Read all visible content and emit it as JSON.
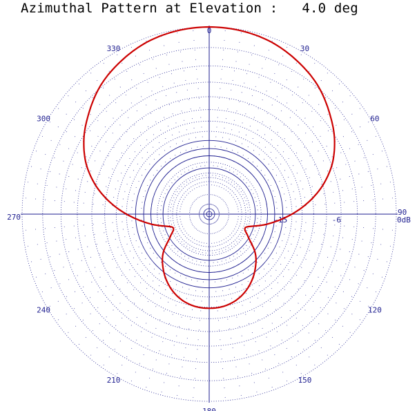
{
  "chart_data": {
    "type": "polar-line",
    "title": "Azimuthal Pattern at Elevation :   4.0 deg",
    "angle_ticks": [
      {
        "deg": 0,
        "label": "0"
      },
      {
        "deg": 30,
        "label": "30"
      },
      {
        "deg": 60,
        "label": "60"
      },
      {
        "deg": 90,
        "label": "90"
      },
      {
        "deg": 120,
        "label": "120"
      },
      {
        "deg": 150,
        "label": "150"
      },
      {
        "deg": 180,
        "label": "180"
      },
      {
        "deg": 210,
        "label": "210"
      },
      {
        "deg": 240,
        "label": "240"
      },
      {
        "deg": 270,
        "label": "270"
      },
      {
        "deg": 300,
        "label": "300"
      },
      {
        "deg": 330,
        "label": "330"
      }
    ],
    "radial_labels": [
      {
        "db": -15,
        "label": "-15"
      },
      {
        "db": -6,
        "label": "-6"
      },
      {
        "db": 0,
        "label": "0dB"
      }
    ],
    "radial_unit": "dB",
    "rings_db": [
      0,
      -2,
      -4,
      -6,
      -8,
      -10,
      -12,
      -14,
      -16,
      -18,
      -20,
      -22,
      -24,
      -26,
      -28,
      -30
    ],
    "r_range_db": [
      -30,
      0
    ],
    "angular_grid_step_deg": 5,
    "grid": true,
    "series": [
      {
        "color": "#cc0000",
        "points": [
          {
            "az": 0,
            "db": 0.0
          },
          {
            "az": 10,
            "db": -0.1
          },
          {
            "az": 20,
            "db": -0.4
          },
          {
            "az": 30,
            "db": -1.0
          },
          {
            "az": 40,
            "db": -1.8
          },
          {
            "az": 50,
            "db": -3.0
          },
          {
            "az": 60,
            "db": -4.4
          },
          {
            "az": 70,
            "db": -6.4
          },
          {
            "az": 80,
            "db": -9.5
          },
          {
            "az": 90,
            "db": -14.0
          },
          {
            "az": 100,
            "db": -20.0
          },
          {
            "az": 110,
            "db": -27.0
          },
          {
            "az": 120,
            "db": -24.5
          },
          {
            "az": 130,
            "db": -19.5
          },
          {
            "az": 140,
            "db": -16.5
          },
          {
            "az": 150,
            "db": -14.3
          },
          {
            "az": 160,
            "db": -12.8
          },
          {
            "az": 170,
            "db": -12.0
          },
          {
            "az": 180,
            "db": -11.8
          },
          {
            "az": 190,
            "db": -12.0
          },
          {
            "az": 200,
            "db": -12.8
          },
          {
            "az": 210,
            "db": -14.3
          },
          {
            "az": 220,
            "db": -16.5
          },
          {
            "az": 230,
            "db": -19.5
          },
          {
            "az": 240,
            "db": -24.5
          },
          {
            "az": 250,
            "db": -27.0
          },
          {
            "az": 260,
            "db": -20.0
          },
          {
            "az": 270,
            "db": -14.0
          },
          {
            "az": 280,
            "db": -9.5
          },
          {
            "az": 290,
            "db": -6.4
          },
          {
            "az": 300,
            "db": -4.4
          },
          {
            "az": 310,
            "db": -3.0
          },
          {
            "az": 320,
            "db": -1.8
          },
          {
            "az": 330,
            "db": -1.0
          },
          {
            "az": 340,
            "db": -0.4
          },
          {
            "az": 350,
            "db": -0.1
          },
          {
            "az": 360,
            "db": 0.0
          }
        ]
      }
    ],
    "colors": {
      "grid": "#1d1d8f",
      "pattern": "#cc0000",
      "title": "#000000"
    }
  }
}
